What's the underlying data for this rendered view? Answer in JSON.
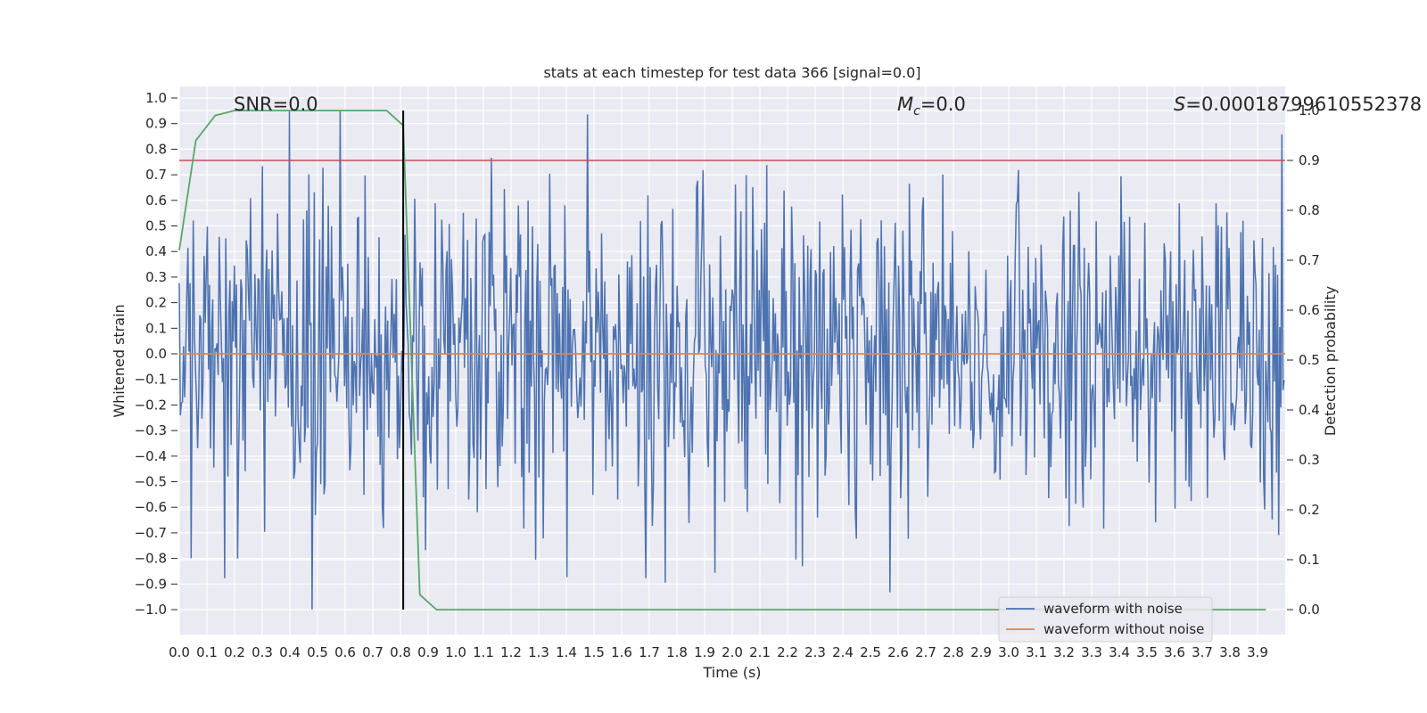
{
  "chart_data": {
    "type": "line",
    "title": "stats at each timestep for test data 366 [signal=0.0]",
    "xlabel": "Time (s)",
    "ylabel": "Whitened strain",
    "y2label": "Detection probability",
    "xlim": [
      0.0,
      4.0
    ],
    "ylim": [
      -1.1,
      1.1
    ],
    "y2lim": [
      -0.05,
      1.0
    ],
    "grid": true,
    "x_ticks": [
      "0.0",
      "0.1",
      "0.2",
      "0.3",
      "0.4",
      "0.5",
      "0.6",
      "0.7",
      "0.8",
      "0.9",
      "1.0",
      "1.1",
      "1.2",
      "1.3",
      "1.4",
      "1.5",
      "1.6",
      "1.7",
      "1.8",
      "1.9",
      "2.0",
      "2.1",
      "2.2",
      "2.3",
      "2.4",
      "2.5",
      "2.6",
      "2.7",
      "2.8",
      "2.9",
      "3.0",
      "3.1",
      "3.2",
      "3.3",
      "3.4",
      "3.5",
      "3.6",
      "3.7",
      "3.8",
      "3.9"
    ],
    "y_ticks": [
      "1.0",
      "0.9",
      "0.8",
      "0.7",
      "0.6",
      "0.5",
      "0.4",
      "0.3",
      "0.2",
      "0.1",
      "0.0",
      "-0.1",
      "-0.2",
      "-0.3",
      "-0.4",
      "-0.5",
      "-0.6",
      "-0.7",
      "-0.8",
      "-0.9",
      "-1.0"
    ],
    "y2_ticks": [
      "1.0",
      "0.9",
      "0.8",
      "0.7",
      "0.6",
      "0.5",
      "0.4",
      "0.3",
      "0.2",
      "0.1",
      "0.0"
    ],
    "annotations": {
      "snr": "SNR=0.0",
      "mc_symbol": "M",
      "mc_sub": "c",
      "mc_value": "=0.0",
      "s_symbol": "S",
      "s_value": "=0.00018799610552378"
    },
    "vertical_marker_x": 0.81,
    "threshold_probability": 0.9,
    "series": [
      {
        "name": "waveform with noise",
        "color": "#4c72b0",
        "axis": "left",
        "description": "noise-only whitened strain, peaks within about -1.0 to 0.95",
        "amplitude_range": [
          -1.0,
          0.95
        ],
        "samples": 1024
      },
      {
        "name": "waveform without noise",
        "color": "#dd8452",
        "axis": "left",
        "constant_value": 0.0
      },
      {
        "name": "detection probability",
        "color": "#55a868",
        "axis": "right",
        "x": [
          0.0,
          0.06,
          0.13,
          0.2,
          0.3,
          0.4,
          0.5,
          0.6,
          0.75,
          0.81,
          0.87,
          0.93,
          1.0,
          1.5,
          2.0,
          2.5,
          3.0,
          3.5,
          3.93
        ],
        "values": [
          0.72,
          0.94,
          0.99,
          1.0,
          1.0,
          1.0,
          1.0,
          1.0,
          1.0,
          0.97,
          0.03,
          0.0,
          0.0,
          0.0,
          0.0,
          0.0,
          0.0,
          0.0,
          0.0
        ]
      }
    ],
    "threshold_color": "#c44e52",
    "marker_color": "#000000",
    "legend": {
      "position": "lower-right",
      "entries": [
        {
          "label": "waveform with noise",
          "color": "#4c72b0"
        },
        {
          "label": "waveform without noise",
          "color": "#dd8452"
        }
      ]
    }
  }
}
